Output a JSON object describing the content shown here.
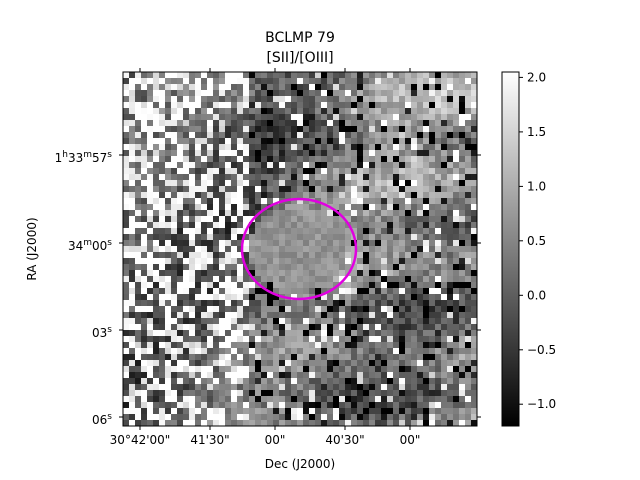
{
  "chart_data": {
    "type": "heatmap",
    "title": "BCLMP 79",
    "subtitle": "[SII]/[OIII]",
    "xlabel": "Dec (J2000)",
    "ylabel": "RA (J2000)",
    "x_tick_labels": [
      "30°42'00\"",
      "41'30\"",
      "00\"",
      "40'30\"",
      "00\""
    ],
    "y_tick_labels": [
      {
        "main": "1",
        "sup1": "h",
        "mid1": "33",
        "sup2": "m",
        "mid2": "57",
        "sup3": "s"
      },
      {
        "main": "34",
        "sup1": "m",
        "mid1": "00",
        "sup2": "s",
        "mid2": "",
        "sup3": ""
      },
      {
        "main": "03",
        "sup1": "s",
        "mid1": "",
        "sup2": "",
        "mid2": "",
        "sup3": ""
      },
      {
        "main": "06",
        "sup1": "s",
        "mid1": "",
        "sup2": "",
        "mid2": "",
        "sup3": ""
      }
    ],
    "colorbar": {
      "colormap": "gray",
      "vmin": -1.2,
      "vmax": 2.05,
      "ticks": [
        -1.0,
        -0.5,
        0.0,
        0.5,
        1.0,
        1.5,
        2.0
      ],
      "tick_labels": [
        "−1.0",
        "−0.5",
        "0.0",
        "0.5",
        "1.0",
        "1.5",
        "2.0"
      ]
    },
    "annotation": {
      "shape": "ellipse",
      "color": "#e000e0"
    }
  }
}
